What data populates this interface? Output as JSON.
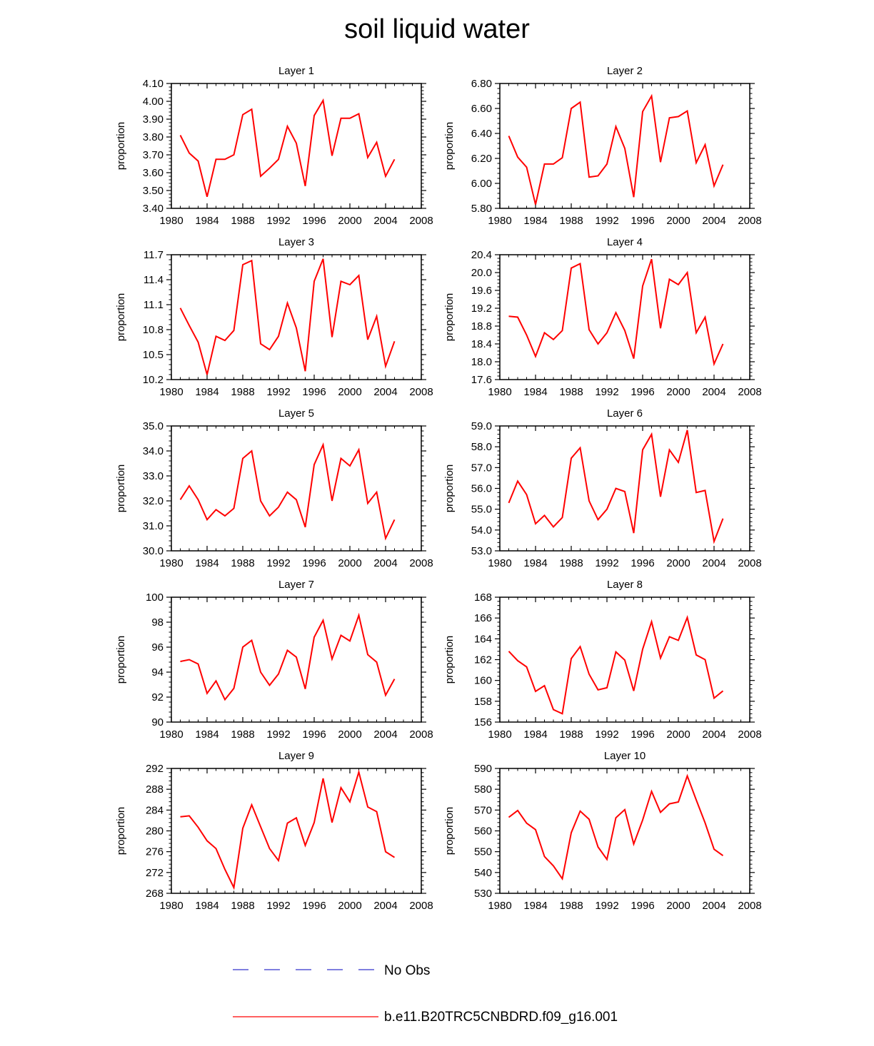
{
  "title": "soil liquid water",
  "colors": {
    "model": "#ff0000",
    "obs": "#3333cc",
    "axis": "#000000"
  },
  "legend": {
    "entries": [
      {
        "label": "No Obs",
        "style": "dashed",
        "color": "#3333cc"
      },
      {
        "label": "b.e11.B20TRC5CNBDRD.f09_g16.001",
        "style": "solid",
        "color": "#ff0000"
      }
    ]
  },
  "chart_data": [
    {
      "type": "line",
      "title": "Layer 1",
      "ylabel": "proportion",
      "xlim": [
        1980,
        2008
      ],
      "xticks": [
        1980,
        1984,
        1988,
        1992,
        1996,
        2000,
        2004,
        2008
      ],
      "ylim": [
        3.4,
        4.1
      ],
      "yticks": [
        "3.40",
        "3.50",
        "3.60",
        "3.70",
        "3.80",
        "3.90",
        "4.00",
        "4.10"
      ],
      "series": [
        {
          "name": "b.e11.B20TRC5CNBDRD.f09_g16.001",
          "x": [
            1981,
            1982,
            1983,
            1984,
            1985,
            1986,
            1987,
            1988,
            1989,
            1990,
            1991,
            1992,
            1993,
            1994,
            1995,
            1996,
            1997,
            1998,
            1999,
            2000,
            2001,
            2002,
            2003,
            2004,
            2005
          ],
          "values": [
            3.81,
            3.71,
            3.665,
            3.465,
            3.675,
            3.675,
            3.7,
            3.925,
            3.955,
            3.58,
            3.625,
            3.675,
            3.86,
            3.765,
            3.525,
            3.92,
            4.005,
            3.695,
            3.905,
            3.905,
            3.93,
            3.685,
            3.77,
            3.58,
            3.675
          ]
        }
      ]
    },
    {
      "type": "line",
      "title": "Layer 2",
      "ylabel": "proportion",
      "xlim": [
        1980,
        2008
      ],
      "xticks": [
        1980,
        1984,
        1988,
        1992,
        1996,
        2000,
        2004,
        2008
      ],
      "ylim": [
        5.8,
        6.8
      ],
      "yticks": [
        "5.80",
        "6.00",
        "6.20",
        "6.40",
        "6.60",
        "6.80"
      ],
      "series": [
        {
          "name": "b.e11.B20TRC5CNBDRD.f09_g16.001",
          "x": [
            1981,
            1982,
            1983,
            1984,
            1985,
            1986,
            1987,
            1988,
            1989,
            1990,
            1991,
            1992,
            1993,
            1994,
            1995,
            1996,
            1997,
            1998,
            1999,
            2000,
            2001,
            2002,
            2003,
            2004,
            2005
          ],
          "values": [
            6.38,
            6.21,
            6.13,
            5.83,
            6.155,
            6.155,
            6.205,
            6.6,
            6.65,
            6.05,
            6.06,
            6.155,
            6.455,
            6.28,
            5.89,
            6.575,
            6.7,
            6.17,
            6.525,
            6.535,
            6.58,
            6.165,
            6.31,
            5.98,
            6.15
          ]
        }
      ]
    },
    {
      "type": "line",
      "title": "Layer 3",
      "ylabel": "proportion",
      "xlim": [
        1980,
        2008
      ],
      "xticks": [
        1980,
        1984,
        1988,
        1992,
        1996,
        2000,
        2004,
        2008
      ],
      "ylim": [
        10.2,
        11.7
      ],
      "yticks": [
        "10.2",
        "10.5",
        "10.8",
        "11.1",
        "11.4",
        "11.7"
      ],
      "series": [
        {
          "name": "b.e11.B20TRC5CNBDRD.f09_g16.001",
          "x": [
            1981,
            1982,
            1983,
            1984,
            1985,
            1986,
            1987,
            1988,
            1989,
            1990,
            1991,
            1992,
            1993,
            1994,
            1995,
            1996,
            1997,
            1998,
            1999,
            2000,
            2001,
            2002,
            2003,
            2004,
            2005
          ],
          "values": [
            11.06,
            10.85,
            10.65,
            10.26,
            10.72,
            10.67,
            10.79,
            11.58,
            11.63,
            10.63,
            10.56,
            10.72,
            11.12,
            10.82,
            10.3,
            11.38,
            11.65,
            10.71,
            11.38,
            11.34,
            11.45,
            10.68,
            10.96,
            10.36,
            10.66
          ]
        }
      ]
    },
    {
      "type": "line",
      "title": "Layer 4",
      "ylabel": "proportion",
      "xlim": [
        1980,
        2008
      ],
      "xticks": [
        1980,
        1984,
        1988,
        1992,
        1996,
        2000,
        2004,
        2008
      ],
      "ylim": [
        17.6,
        20.4
      ],
      "yticks": [
        "17.6",
        "18.0",
        "18.4",
        "18.8",
        "19.2",
        "19.6",
        "20.0",
        "20.4"
      ],
      "series": [
        {
          "name": "b.e11.B20TRC5CNBDRD.f09_g16.001",
          "x": [
            1981,
            1982,
            1983,
            1984,
            1985,
            1986,
            1987,
            1988,
            1989,
            1990,
            1991,
            1992,
            1993,
            1994,
            1995,
            1996,
            1997,
            1998,
            1999,
            2000,
            2001,
            2002,
            2003,
            2004,
            2005
          ],
          "values": [
            19.02,
            19.0,
            18.6,
            18.12,
            18.65,
            18.5,
            18.7,
            20.1,
            20.2,
            18.72,
            18.4,
            18.65,
            19.1,
            18.7,
            18.07,
            19.7,
            20.3,
            18.75,
            19.85,
            19.73,
            20.0,
            18.65,
            19.0,
            17.95,
            18.4
          ]
        }
      ]
    },
    {
      "type": "line",
      "title": "Layer 5",
      "ylabel": "proportion",
      "xlim": [
        1980,
        2008
      ],
      "xticks": [
        1980,
        1984,
        1988,
        1992,
        1996,
        2000,
        2004,
        2008
      ],
      "ylim": [
        30.0,
        35.0
      ],
      "yticks": [
        "30.0",
        "31.0",
        "32.0",
        "33.0",
        "34.0",
        "35.0"
      ],
      "series": [
        {
          "name": "b.e11.B20TRC5CNBDRD.f09_g16.001",
          "x": [
            1981,
            1982,
            1983,
            1984,
            1985,
            1986,
            1987,
            1988,
            1989,
            1990,
            1991,
            1992,
            1993,
            1994,
            1995,
            1996,
            1997,
            1998,
            1999,
            2000,
            2001,
            2002,
            2003,
            2004,
            2005
          ],
          "values": [
            32.05,
            32.6,
            32.05,
            31.25,
            31.65,
            31.4,
            31.7,
            33.7,
            34.0,
            32.0,
            31.4,
            31.75,
            32.35,
            32.05,
            30.95,
            33.45,
            34.25,
            32.0,
            33.7,
            33.4,
            34.05,
            31.9,
            32.35,
            30.5,
            31.25
          ]
        }
      ]
    },
    {
      "type": "line",
      "title": "Layer 6",
      "ylabel": "proportion",
      "xlim": [
        1980,
        2008
      ],
      "xticks": [
        1980,
        1984,
        1988,
        1992,
        1996,
        2000,
        2004,
        2008
      ],
      "ylim": [
        53.0,
        59.0
      ],
      "yticks": [
        "53.0",
        "54.0",
        "55.0",
        "56.0",
        "57.0",
        "58.0",
        "59.0"
      ],
      "series": [
        {
          "name": "b.e11.B20TRC5CNBDRD.f09_g16.001",
          "x": [
            1981,
            1982,
            1983,
            1984,
            1985,
            1986,
            1987,
            1988,
            1989,
            1990,
            1991,
            1992,
            1993,
            1994,
            1995,
            1996,
            1997,
            1998,
            1999,
            2000,
            2001,
            2002,
            2003,
            2004,
            2005
          ],
          "values": [
            55.3,
            56.35,
            55.7,
            54.3,
            54.7,
            54.15,
            54.6,
            57.45,
            57.95,
            55.4,
            54.5,
            55.0,
            56.0,
            55.85,
            53.85,
            57.85,
            58.6,
            55.6,
            57.85,
            57.25,
            58.8,
            55.8,
            55.9,
            53.45,
            54.55
          ]
        }
      ]
    },
    {
      "type": "line",
      "title": "Layer 7",
      "ylabel": "proportion",
      "xlim": [
        1980,
        2008
      ],
      "xticks": [
        1980,
        1984,
        1988,
        1992,
        1996,
        2000,
        2004,
        2008
      ],
      "ylim": [
        90,
        100
      ],
      "yticks": [
        "90",
        "92",
        "94",
        "96",
        "98",
        "100"
      ],
      "series": [
        {
          "name": "b.e11.B20TRC5CNBDRD.f09_g16.001",
          "x": [
            1981,
            1982,
            1983,
            1984,
            1985,
            1986,
            1987,
            1988,
            1989,
            1990,
            1991,
            1992,
            1993,
            1994,
            1995,
            1996,
            1997,
            1998,
            1999,
            2000,
            2001,
            2002,
            2003,
            2004,
            2005
          ],
          "values": [
            94.85,
            95.0,
            94.65,
            92.3,
            93.3,
            91.8,
            92.7,
            96.0,
            96.55,
            94.0,
            92.95,
            93.85,
            95.75,
            95.2,
            92.65,
            96.8,
            98.15,
            95.05,
            96.95,
            96.5,
            98.55,
            95.4,
            94.8,
            92.15,
            93.45
          ]
        }
      ]
    },
    {
      "type": "line",
      "title": "Layer 8",
      "ylabel": "proportion",
      "xlim": [
        1980,
        2008
      ],
      "xticks": [
        1980,
        1984,
        1988,
        1992,
        1996,
        2000,
        2004,
        2008
      ],
      "ylim": [
        156,
        168
      ],
      "yticks": [
        "156",
        "158",
        "160",
        "162",
        "164",
        "166",
        "168"
      ],
      "series": [
        {
          "name": "b.e11.B20TRC5CNBDRD.f09_g16.001",
          "x": [
            1981,
            1982,
            1983,
            1984,
            1985,
            1986,
            1987,
            1988,
            1989,
            1990,
            1991,
            1992,
            1993,
            1994,
            1995,
            1996,
            1997,
            1998,
            1999,
            2000,
            2001,
            2002,
            2003,
            2004,
            2005
          ],
          "values": [
            162.8,
            161.9,
            161.3,
            158.95,
            159.5,
            157.2,
            156.8,
            162.1,
            163.25,
            160.6,
            159.1,
            159.3,
            162.75,
            161.95,
            159.0,
            163.0,
            165.65,
            162.15,
            164.2,
            163.85,
            166.05,
            162.45,
            162.0,
            158.3,
            159.0
          ]
        }
      ]
    },
    {
      "type": "line",
      "title": "Layer 9",
      "ylabel": "proportion",
      "xlim": [
        1980,
        2008
      ],
      "xticks": [
        1980,
        1984,
        1988,
        1992,
        1996,
        2000,
        2004,
        2008
      ],
      "ylim": [
        268,
        292
      ],
      "yticks": [
        "268",
        "272",
        "276",
        "280",
        "284",
        "288",
        "292"
      ],
      "series": [
        {
          "name": "b.e11.B20TRC5CNBDRD.f09_g16.001",
          "x": [
            1981,
            1982,
            1983,
            1984,
            1985,
            1986,
            1987,
            1988,
            1989,
            1990,
            1991,
            1992,
            1993,
            1994,
            1995,
            1996,
            1997,
            1998,
            1999,
            2000,
            2001,
            2002,
            2003,
            2004,
            2005
          ],
          "values": [
            282.7,
            282.9,
            280.7,
            278.1,
            276.6,
            272.6,
            269.1,
            280.5,
            285.0,
            280.8,
            276.6,
            274.3,
            281.5,
            282.5,
            277.2,
            281.6,
            290.1,
            281.6,
            288.3,
            285.6,
            291.3,
            284.6,
            283.7,
            276.0,
            274.9
          ]
        }
      ]
    },
    {
      "type": "line",
      "title": "Layer 10",
      "ylabel": "proportion",
      "xlim": [
        1980,
        2008
      ],
      "xticks": [
        1980,
        1984,
        1988,
        1992,
        1996,
        2000,
        2004,
        2008
      ],
      "ylim": [
        530,
        590
      ],
      "yticks": [
        "530",
        "540",
        "550",
        "560",
        "570",
        "580",
        "590"
      ],
      "series": [
        {
          "name": "b.e11.B20TRC5CNBDRD.f09_g16.001",
          "x": [
            1981,
            1982,
            1983,
            1984,
            1985,
            1986,
            1987,
            1988,
            1989,
            1990,
            1991,
            1992,
            1993,
            1994,
            1995,
            1996,
            1997,
            1998,
            1999,
            2000,
            2001,
            2002,
            2003,
            2004,
            2005
          ],
          "values": [
            566.5,
            569.8,
            563.7,
            560.6,
            547.7,
            543.2,
            537.0,
            559.1,
            569.5,
            565.6,
            552.3,
            546.3,
            566.3,
            570.2,
            553.7,
            565.2,
            579.0,
            568.9,
            573.0,
            573.9,
            586.4,
            574.9,
            563.8,
            551.2,
            548.1
          ]
        }
      ]
    }
  ]
}
